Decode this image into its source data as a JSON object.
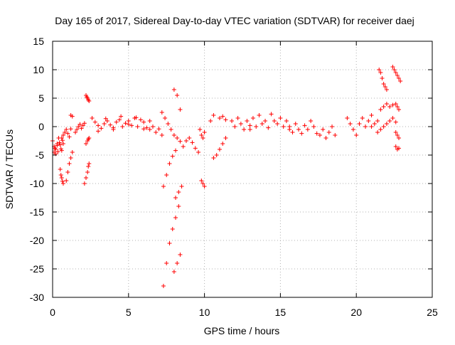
{
  "chart_data": {
    "type": "scatter",
    "title": "Day 165 of 2017, Sidereal Day-to-day VTEC variation (SDTVAR) for receiver daej",
    "xlabel": "GPS time / hours",
    "ylabel": "SDTVAR / TECUs",
    "xlim": [
      0,
      25
    ],
    "ylim": [
      -30,
      15
    ],
    "xticks": [
      0,
      5,
      10,
      15,
      20,
      25
    ],
    "yticks": [
      -30,
      -25,
      -20,
      -15,
      -10,
      -5,
      0,
      5,
      10,
      15
    ],
    "xtick_labels": [
      "0",
      "5",
      "10",
      "15",
      "20",
      "25"
    ],
    "ytick_labels": [
      "-30",
      "-25",
      "-20",
      "-15",
      "-10",
      "-5",
      "0",
      "5",
      "10",
      "15"
    ],
    "grid": true,
    "marker": "plus",
    "color": "#ff0000",
    "series": [
      {
        "name": "s1",
        "x": [
          0.0,
          0.1,
          0.2,
          0.3,
          0.4,
          0.5,
          0.6,
          0.7
        ],
        "y": [
          -2.5,
          -3.5,
          -4.0,
          -3.0,
          -2.0,
          -3.2,
          -4.2,
          -3.0
        ]
      },
      {
        "name": "s2",
        "x": [
          0.1,
          0.15,
          0.2,
          0.3,
          0.35,
          0.45,
          0.55,
          0.65
        ],
        "y": [
          -4.5,
          -3.8,
          -4.8,
          -3.3,
          -4.4,
          -2.8,
          -3.9,
          -2.4
        ]
      },
      {
        "name": "s3",
        "x": [
          0.5,
          0.55,
          0.6,
          0.65,
          0.7
        ],
        "y": [
          -7.5,
          -8.5,
          -9.0,
          -9.6,
          -10.0
        ]
      },
      {
        "name": "s4",
        "x": [
          0.6,
          0.7,
          0.8,
          0.9,
          1.0,
          1.1,
          1.2
        ],
        "y": [
          -2.0,
          -1.5,
          -1.0,
          -0.5,
          -1.2,
          -1.8,
          -0.4
        ]
      },
      {
        "name": "s5",
        "x": [
          0.9,
          1.0,
          1.1,
          1.2,
          1.3
        ],
        "y": [
          -9.5,
          -8.0,
          -6.5,
          -5.5,
          -4.5
        ]
      },
      {
        "name": "s6",
        "x": [
          1.2,
          1.3
        ],
        "y": [
          2.0,
          1.8
        ]
      },
      {
        "name": "s7",
        "x": [
          1.5,
          1.6,
          1.7,
          1.8,
          1.9,
          2.0,
          2.1
        ],
        "y": [
          -1.0,
          -0.5,
          0.0,
          0.4,
          -0.3,
          0.2,
          0.6
        ]
      },
      {
        "name": "s8",
        "x": [
          2.1,
          2.2,
          2.3,
          2.35,
          2.4
        ],
        "y": [
          -10.0,
          -9.0,
          -8.0,
          -7.0,
          -6.5
        ]
      },
      {
        "name": "s9",
        "x": [
          2.2,
          2.3,
          2.35,
          2.4
        ],
        "y": [
          -3.0,
          -2.5,
          -2.2,
          -2.0
        ]
      },
      {
        "name": "s10",
        "x": [
          2.2,
          2.25,
          2.3,
          2.35,
          2.4
        ],
        "y": [
          5.5,
          5.2,
          5.0,
          4.7,
          4.5
        ]
      },
      {
        "name": "s11",
        "x": [
          2.6,
          2.8,
          3.0,
          3.2,
          3.4,
          3.6,
          3.8,
          4.0,
          4.2,
          4.4,
          4.6,
          4.8
        ],
        "y": [
          1.5,
          0.8,
          0.2,
          -0.3,
          0.5,
          1.0,
          0.3,
          -0.5,
          0.8,
          1.2,
          0.0,
          0.6
        ]
      },
      {
        "name": "s12",
        "x": [
          3.0,
          3.5,
          4.0,
          4.5,
          5.0,
          5.5,
          6.0
        ],
        "y": [
          -0.8,
          1.4,
          -0.2,
          1.8,
          0.4,
          1.6,
          -0.4
        ]
      },
      {
        "name": "s13",
        "x": [
          5.0,
          5.2,
          5.4,
          5.6,
          5.8,
          6.0,
          6.2,
          6.4
        ],
        "y": [
          1.0,
          0.2,
          1.5,
          0.0,
          1.2,
          0.8,
          -0.2,
          1.0
        ]
      },
      {
        "name": "s14",
        "x": [
          6.4,
          6.6,
          6.8,
          7.0,
          7.2
        ],
        "y": [
          -0.5,
          0.0,
          -1.0,
          -0.4,
          -1.5
        ]
      },
      {
        "name": "s15",
        "x": [
          7.2,
          7.4,
          7.6,
          7.8,
          8.0,
          8.2,
          8.4
        ],
        "y": [
          2.5,
          1.5,
          0.5,
          -0.5,
          -1.5,
          -2.0,
          -2.6
        ]
      },
      {
        "name": "s16",
        "x": [
          7.3,
          7.5,
          7.7,
          7.9,
          8.1
        ],
        "y": [
          -10.5,
          -8.5,
          -6.5,
          -5.2,
          -4.2
        ]
      },
      {
        "name": "s17",
        "x": [
          7.3,
          7.5,
          7.7,
          7.9,
          8.1
        ],
        "y": [
          -28.0,
          -24.0,
          -20.5,
          -18.0,
          -16.0
        ]
      },
      {
        "name": "s18",
        "x": [
          8.1,
          8.3,
          8.5
        ],
        "y": [
          -12.5,
          -11.5,
          -10.5
        ]
      },
      {
        "name": "s19",
        "x": [
          8.0,
          8.2,
          8.4
        ],
        "y": [
          -25.5,
          -24.0,
          -22.5
        ]
      },
      {
        "name": "s20",
        "x": [
          8.0,
          8.2,
          8.4
        ],
        "y": [
          6.5,
          5.5,
          3.0
        ]
      },
      {
        "name": "s21",
        "x": [
          8.3
        ],
        "y": [
          -14.0
        ]
      },
      {
        "name": "s22",
        "x": [
          8.6,
          8.8,
          9.0,
          9.2,
          9.4,
          9.6
        ],
        "y": [
          -3.5,
          -2.5,
          -2.0,
          -2.8,
          -3.8,
          -4.5
        ]
      },
      {
        "name": "s23",
        "x": [
          9.8,
          9.9,
          10.0
        ],
        "y": [
          -9.5,
          -10.0,
          -10.5
        ]
      },
      {
        "name": "s24",
        "x": [
          9.7,
          9.8,
          9.9,
          10.0
        ],
        "y": [
          -0.5,
          -1.5,
          -2.0,
          -1.0
        ]
      },
      {
        "name": "s25",
        "x": [
          10.4,
          10.6
        ],
        "y": [
          1.0,
          2.0
        ]
      },
      {
        "name": "s26",
        "x": [
          10.6,
          10.8,
          11.0,
          11.2,
          11.4
        ],
        "y": [
          -5.5,
          -5.0,
          -4.0,
          -3.0,
          -2.0
        ]
      },
      {
        "name": "s27",
        "x": [
          11.0,
          11.2,
          11.4
        ],
        "y": [
          1.5,
          1.8,
          1.2
        ]
      },
      {
        "name": "s28",
        "x": [
          11.8,
          12.0,
          12.2,
          12.4,
          12.6,
          12.8,
          13.0
        ],
        "y": [
          1.0,
          0.0,
          1.5,
          0.5,
          -0.5,
          1.0,
          0.2
        ]
      },
      {
        "name": "s29",
        "x": [
          13.0,
          13.2,
          13.4,
          13.6,
          13.8,
          14.0,
          14.2,
          14.4,
          14.6
        ],
        "y": [
          -0.5,
          1.5,
          0.0,
          2.0,
          0.5,
          1.0,
          -0.2,
          2.2,
          1.0
        ]
      },
      {
        "name": "s30",
        "x": [
          14.8,
          15.0,
          15.2,
          15.4,
          15.6
        ],
        "y": [
          0.5,
          1.5,
          0.0,
          1.0,
          -0.5
        ]
      },
      {
        "name": "s31",
        "x": [
          15.6,
          15.8,
          16.0,
          16.2,
          16.4,
          16.6
        ],
        "y": [
          0.0,
          -1.0,
          0.5,
          -0.5,
          -1.2,
          0.2
        ]
      },
      {
        "name": "s32",
        "x": [
          16.8,
          17.0,
          17.2,
          17.4
        ],
        "y": [
          -0.5,
          1.0,
          0.0,
          -1.2
        ]
      },
      {
        "name": "s33",
        "x": [
          17.6,
          17.8,
          18.0,
          18.2,
          18.4,
          18.6
        ],
        "y": [
          -1.5,
          -0.5,
          -2.0,
          -1.0,
          0.0,
          -1.5
        ]
      },
      {
        "name": "s34",
        "x": [
          19.4,
          19.6,
          19.8,
          20.0,
          20.2,
          20.4,
          20.6,
          20.8,
          21.0
        ],
        "y": [
          1.5,
          0.5,
          -0.5,
          -1.5,
          0.5,
          1.5,
          0.0,
          1.0,
          2.0
        ]
      },
      {
        "name": "s35",
        "x": [
          21.0,
          21.2,
          21.4
        ],
        "y": [
          0.0,
          0.5,
          1.0
        ]
      },
      {
        "name": "s36",
        "x": [
          21.5,
          21.6,
          21.7,
          21.8,
          21.9,
          22.0
        ],
        "y": [
          10.0,
          9.5,
          8.5,
          7.5,
          7.0,
          6.5
        ]
      },
      {
        "name": "s37",
        "x": [
          21.6,
          21.8,
          22.0,
          22.2,
          22.4
        ],
        "y": [
          3.0,
          3.5,
          4.0,
          3.5,
          3.8
        ]
      },
      {
        "name": "s38",
        "x": [
          21.4,
          21.6,
          21.8,
          22.0,
          22.2,
          22.4,
          22.6
        ],
        "y": [
          -1.0,
          -0.5,
          0.0,
          0.5,
          1.0,
          1.5,
          0.8
        ]
      },
      {
        "name": "s39",
        "x": [
          22.4,
          22.5,
          22.6,
          22.7,
          22.8,
          22.9
        ],
        "y": [
          10.5,
          10.0,
          9.5,
          9.0,
          8.5,
          8.0
        ]
      },
      {
        "name": "s40",
        "x": [
          22.6,
          22.7,
          22.8
        ],
        "y": [
          4.0,
          3.5,
          3.0
        ]
      },
      {
        "name": "s41",
        "x": [
          22.6,
          22.7,
          22.8
        ],
        "y": [
          -1.0,
          -1.5,
          -2.0
        ]
      },
      {
        "name": "s42",
        "x": [
          22.6,
          22.7,
          22.8
        ],
        "y": [
          -3.5,
          -4.0,
          -3.8
        ]
      }
    ]
  }
}
